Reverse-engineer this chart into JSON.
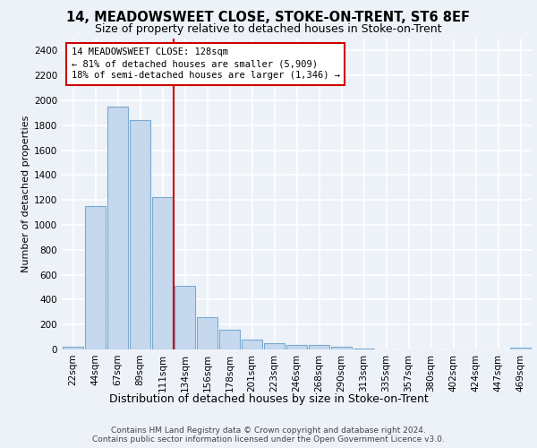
{
  "title": "14, MEADOWSWEET CLOSE, STOKE-ON-TRENT, ST6 8EF",
  "subtitle": "Size of property relative to detached houses in Stoke-on-Trent",
  "xlabel": "Distribution of detached houses by size in Stoke-on-Trent",
  "ylabel": "Number of detached properties",
  "footnote1": "Contains HM Land Registry data © Crown copyright and database right 2024.",
  "footnote2": "Contains public sector information licensed under the Open Government Licence v3.0.",
  "bar_labels": [
    "22sqm",
    "44sqm",
    "67sqm",
    "89sqm",
    "111sqm",
    "134sqm",
    "156sqm",
    "178sqm",
    "201sqm",
    "223sqm",
    "246sqm",
    "268sqm",
    "290sqm",
    "313sqm",
    "335sqm",
    "357sqm",
    "380sqm",
    "402sqm",
    "424sqm",
    "447sqm",
    "469sqm"
  ],
  "bar_values": [
    25,
    1150,
    1950,
    1840,
    1220,
    510,
    260,
    155,
    80,
    50,
    35,
    35,
    20,
    5,
    3,
    2,
    2,
    1,
    1,
    1,
    15
  ],
  "bar_color": "#c5d8ed",
  "bar_edgecolor": "#7aaacf",
  "bar_linewidth": 0.8,
  "vline_x": 4.5,
  "vline_color": "#cc0000",
  "annotation_line1": "14 MEADOWSWEET CLOSE: 128sqm",
  "annotation_line2": "← 81% of detached houses are smaller (5,909)",
  "annotation_line3": "18% of semi-detached houses are larger (1,346) →",
  "annotation_box_edgecolor": "#cc0000",
  "annotation_box_facecolor": "#ffffff",
  "ylim_max": 2500,
  "yticks": [
    0,
    200,
    400,
    600,
    800,
    1000,
    1200,
    1400,
    1600,
    1800,
    2000,
    2200,
    2400
  ],
  "background_color": "#edf2f9",
  "grid_color": "#ffffff",
  "title_fontsize": 10.5,
  "subtitle_fontsize": 9,
  "xlabel_fontsize": 9,
  "ylabel_fontsize": 8,
  "tick_fontsize": 7.5,
  "annotation_fontsize": 7.5,
  "footnote_fontsize": 6.5
}
